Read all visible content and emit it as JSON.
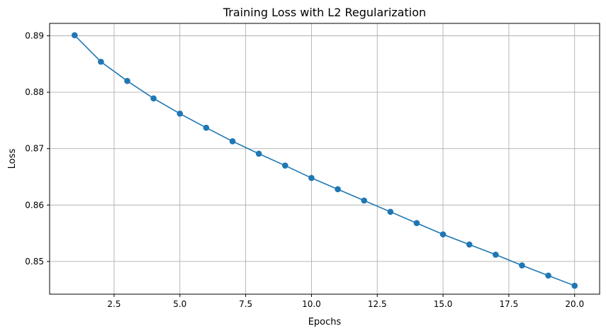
{
  "chart_data": {
    "type": "line",
    "title": "Training Loss with L2 Regularization",
    "xlabel": "Epochs",
    "ylabel": "Loss",
    "xlim": [
      0.05,
      20.95
    ],
    "ylim": [
      0.8442,
      0.8922
    ],
    "grid": true,
    "x_ticks": [
      2.5,
      5.0,
      7.5,
      10.0,
      12.5,
      15.0,
      17.5,
      20.0
    ],
    "x_tick_labels": [
      "2.5",
      "5.0",
      "7.5",
      "10.0",
      "12.5",
      "15.0",
      "17.5",
      "20.0"
    ],
    "y_ticks": [
      0.85,
      0.86,
      0.87,
      0.88,
      0.89
    ],
    "y_tick_labels": [
      "0.85",
      "0.86",
      "0.87",
      "0.88",
      "0.89"
    ],
    "series": [
      {
        "color": "#1f77b4",
        "marker": "circle",
        "x": [
          1,
          2,
          3,
          4,
          5,
          6,
          7,
          8,
          9,
          10,
          11,
          12,
          13,
          14,
          15,
          16,
          17,
          18,
          19,
          20
        ],
        "y": [
          0.8901,
          0.8854,
          0.882,
          0.8789,
          0.8762,
          0.8737,
          0.8713,
          0.8691,
          0.867,
          0.8648,
          0.8628,
          0.8608,
          0.8588,
          0.8568,
          0.8548,
          0.853,
          0.8512,
          0.8493,
          0.8475,
          0.8457
        ]
      }
    ]
  }
}
